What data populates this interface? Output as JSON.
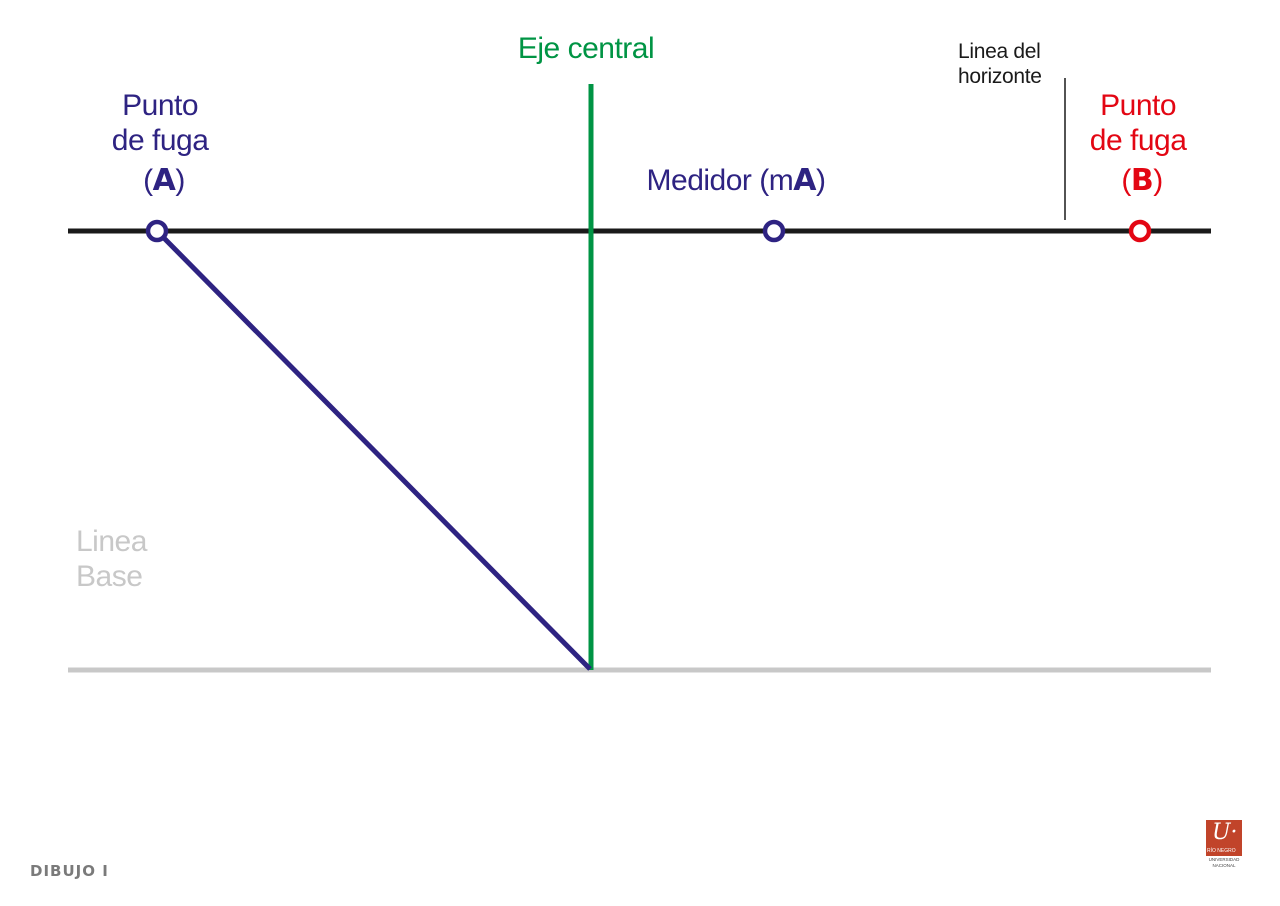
{
  "colors": {
    "navy": "#2e2382",
    "green": "#009444",
    "red": "#e30613",
    "gray": "#c8c8c8",
    "black": "#1a1a1a"
  },
  "labels": {
    "eje_central": "Eje central",
    "linea_horizonte": [
      "Linea del",
      "horizonte"
    ],
    "punto_fuga_a": {
      "line1": "Punto",
      "line2": "de fuga",
      "open": "(",
      "letter": "A",
      "close": ")"
    },
    "medidor": {
      "prefix": "Medidor (m",
      "letter": "A",
      "close": ")"
    },
    "punto_fuga_b": {
      "line1": "Punto",
      "line2": "de fuga",
      "open": "(",
      "letter": "B",
      "close": ")"
    },
    "linea_base": [
      "Linea",
      "Base"
    ]
  },
  "footer": {
    "course": "DIBUJO I"
  },
  "logo": {
    "mark": "U·",
    "line1": "RÍO NEGRO",
    "line2": "UNIVERSIDAD",
    "line3": "NACIONAL"
  }
}
